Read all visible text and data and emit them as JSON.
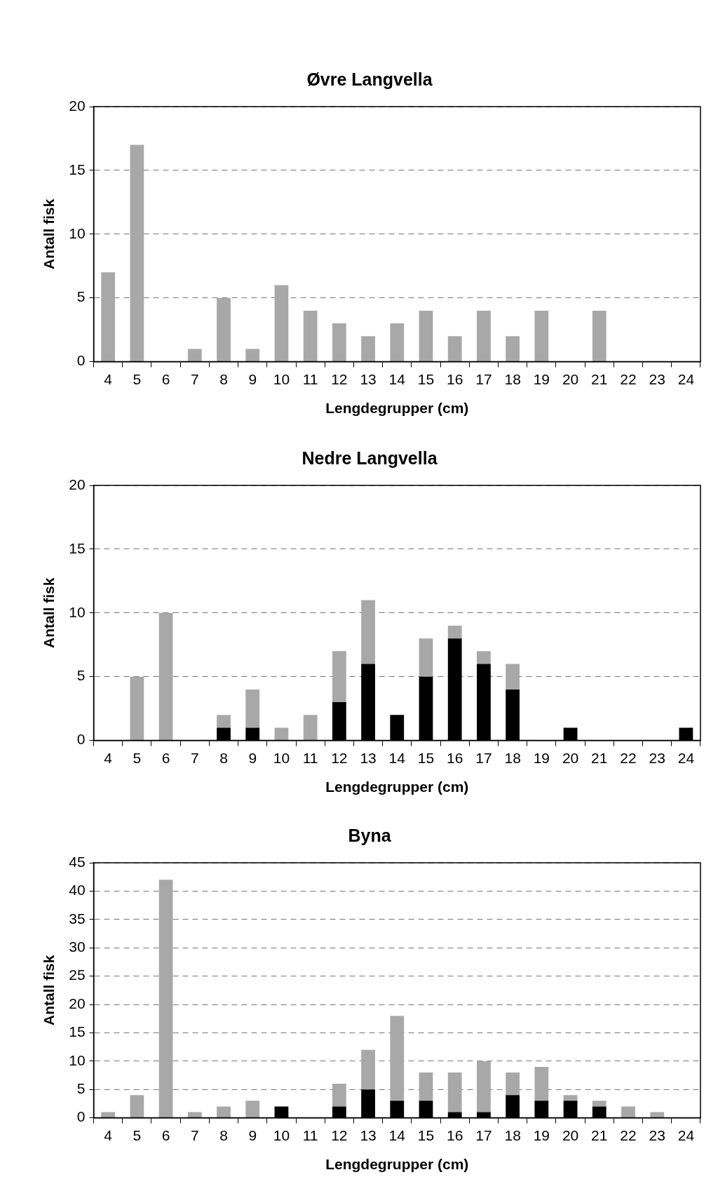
{
  "chart_data": [
    {
      "type": "bar",
      "title": "Øvre Langvella",
      "xlabel": "Lengdegrupper (cm)",
      "ylabel": "Antall fisk",
      "categories": [
        "4",
        "5",
        "6",
        "7",
        "8",
        "9",
        "10",
        "11",
        "12",
        "13",
        "14",
        "15",
        "16",
        "17",
        "18",
        "19",
        "20",
        "21",
        "22",
        "23",
        "24"
      ],
      "stacked": true,
      "ylim": [
        0,
        20
      ],
      "yticks": [
        0,
        5,
        10,
        15,
        20
      ],
      "grid": "y",
      "legend": false,
      "series": [
        {
          "color": "#a8a8a8",
          "values": [
            7,
            17,
            0,
            1,
            5,
            1,
            6,
            4,
            3,
            2,
            3,
            4,
            2,
            4,
            2,
            4,
            0,
            4,
            0,
            0,
            0
          ]
        }
      ]
    },
    {
      "type": "bar",
      "title": "Nedre Langvella",
      "xlabel": "Lengdegrupper (cm)",
      "ylabel": "Antall fisk",
      "categories": [
        "4",
        "5",
        "6",
        "7",
        "8",
        "9",
        "10",
        "11",
        "12",
        "13",
        "14",
        "15",
        "16",
        "17",
        "18",
        "19",
        "20",
        "21",
        "22",
        "23",
        "24"
      ],
      "stacked": true,
      "ylim": [
        0,
        20
      ],
      "yticks": [
        0,
        5,
        10,
        15,
        20
      ],
      "grid": "y",
      "legend": false,
      "series": [
        {
          "color": "#000000",
          "values": [
            0,
            0,
            0,
            0,
            1,
            1,
            0,
            0,
            3,
            6,
            2,
            5,
            8,
            6,
            4,
            0,
            1,
            0,
            0,
            0,
            1
          ]
        },
        {
          "color": "#a8a8a8",
          "values": [
            0,
            5,
            10,
            0,
            1,
            3,
            1,
            2,
            4,
            5,
            0,
            3,
            1,
            1,
            2,
            0,
            0,
            0,
            0,
            0,
            0
          ]
        }
      ]
    },
    {
      "type": "bar",
      "title": "Byna",
      "xlabel": "Lengdegrupper (cm)",
      "ylabel": "Antall fisk",
      "categories": [
        "4",
        "5",
        "6",
        "7",
        "8",
        "9",
        "10",
        "11",
        "12",
        "13",
        "14",
        "15",
        "16",
        "17",
        "18",
        "19",
        "20",
        "21",
        "22",
        "23",
        "24"
      ],
      "stacked": true,
      "ylim": [
        0,
        45
      ],
      "yticks": [
        0,
        5,
        10,
        15,
        20,
        25,
        30,
        35,
        40,
        45
      ],
      "grid": "y",
      "legend": false,
      "series": [
        {
          "color": "#000000",
          "values": [
            0,
            0,
            0,
            0,
            0,
            0,
            2,
            0,
            2,
            5,
            3,
            3,
            1,
            1,
            4,
            3,
            3,
            2,
            0,
            0,
            0
          ]
        },
        {
          "color": "#a8a8a8",
          "values": [
            1,
            4,
            42,
            1,
            2,
            3,
            0,
            0,
            4,
            7,
            15,
            5,
            7,
            9,
            4,
            6,
            1,
            1,
            2,
            1,
            0
          ]
        }
      ]
    }
  ]
}
